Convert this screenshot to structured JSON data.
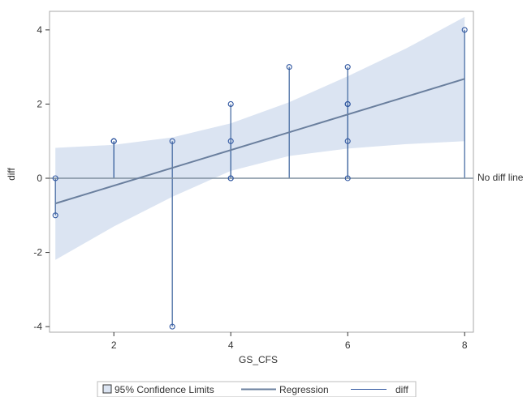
{
  "chart_data": {
    "type": "scatter",
    "xlabel": "GS_CFS",
    "ylabel": "diff",
    "xlim": [
      0.9,
      8.15
    ],
    "ylim": [
      -4.15,
      4.5
    ],
    "xticks": [
      2,
      4,
      6,
      8
    ],
    "yticks": [
      -4,
      -2,
      0,
      2,
      4
    ],
    "reference_line": {
      "y": 0,
      "label": "No diff line"
    },
    "regression": {
      "x": [
        1,
        8
      ],
      "y": [
        -0.68,
        2.68
      ]
    },
    "confidence_band": {
      "x": [
        1,
        2,
        3,
        4,
        5,
        6,
        7,
        8
      ],
      "lower": [
        -2.2,
        -1.3,
        -0.5,
        0.2,
        0.6,
        0.8,
        0.92,
        1.0
      ],
      "upper": [
        0.82,
        0.9,
        1.1,
        1.48,
        2.05,
        2.75,
        3.5,
        4.35
      ]
    },
    "series": [
      {
        "name": "diff",
        "x": [
          1,
          1,
          2,
          2,
          2,
          3,
          3,
          4,
          4,
          4,
          4,
          5,
          6,
          6,
          6,
          6,
          6,
          8
        ],
        "y": [
          0,
          -1,
          1,
          1,
          1,
          1,
          -4,
          2,
          1,
          0,
          0,
          3,
          3,
          2,
          2,
          1,
          0,
          4
        ]
      }
    ],
    "legend": {
      "position": "bottom-center",
      "entries": [
        "95% Confidence Limits",
        "Regression",
        "diff"
      ]
    },
    "colors": {
      "band": "#dbe4f2",
      "regression": "#6a7f9e",
      "needle": "#4a6fa5",
      "marker": "#2f56a0",
      "reference_line": "#7f8f9f",
      "frame": "#a9a9a9"
    }
  }
}
